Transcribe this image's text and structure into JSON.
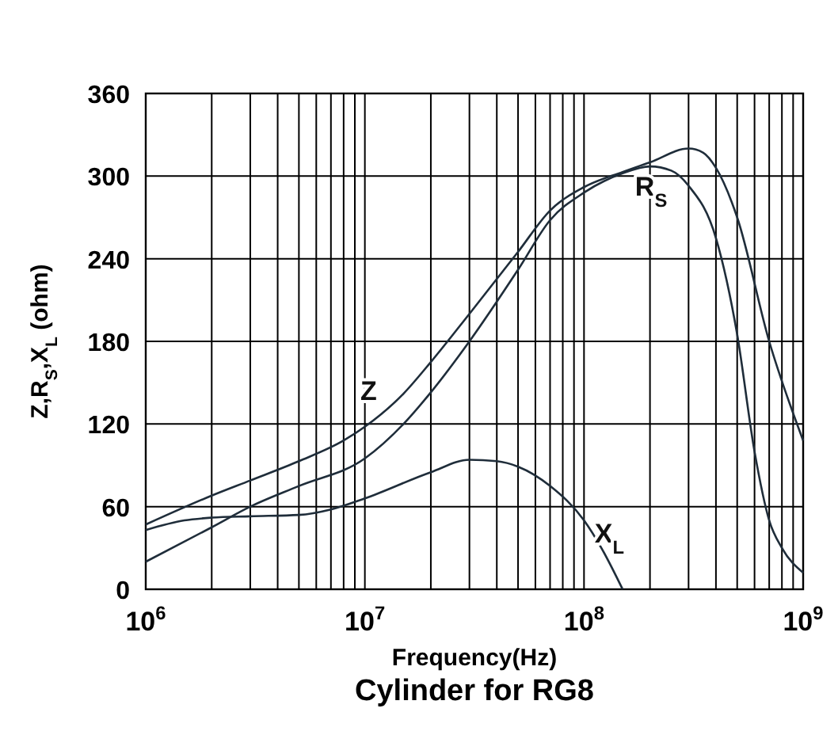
{
  "chart_data": {
    "type": "line",
    "title": "Cylinder for RG8",
    "xlabel": "Frequency(Hz)",
    "ylabel": "Z,R$_{S}$,X$_{L}$ (ohm)",
    "log": "x",
    "grid": true,
    "marker": "none",
    "line_style": "solid",
    "xlim": [
      1000000,
      1000000000
    ],
    "ylim": [
      0,
      360
    ],
    "yticks": [
      0,
      60,
      120,
      180,
      240,
      300,
      360
    ],
    "xticks": [
      {
        "value": 1000000,
        "label": "10$^{6}$"
      },
      {
        "value": 2000000,
        "label": null
      },
      {
        "value": 3000000,
        "label": null
      },
      {
        "value": 4000000,
        "label": null
      },
      {
        "value": 5000000,
        "label": null
      },
      {
        "value": 6000000,
        "label": null
      },
      {
        "value": 7000000,
        "label": null
      },
      {
        "value": 8000000,
        "label": null
      },
      {
        "value": 9000000,
        "label": null
      },
      {
        "value": 10000000,
        "label": "10$^{7}$"
      },
      {
        "value": 20000000,
        "label": null
      },
      {
        "value": 30000000,
        "label": null
      },
      {
        "value": 40000000,
        "label": null
      },
      {
        "value": 50000000,
        "label": null
      },
      {
        "value": 60000000,
        "label": null
      },
      {
        "value": 70000000,
        "label": null
      },
      {
        "value": 80000000,
        "label": null
      },
      {
        "value": 90000000,
        "label": null
      },
      {
        "value": 100000000,
        "label": "10$^{8}$"
      },
      {
        "value": 200000000,
        "label": null
      },
      {
        "value": 300000000,
        "label": null
      },
      {
        "value": 400000000,
        "label": null
      },
      {
        "value": 500000000,
        "label": null
      },
      {
        "value": 600000000,
        "label": null
      },
      {
        "value": 700000000,
        "label": null
      },
      {
        "value": 800000000,
        "label": null
      },
      {
        "value": 900000000,
        "label": null
      },
      {
        "value": 1000000000,
        "label": "10$^{9}$"
      }
    ],
    "series": [
      {
        "name": "Z",
        "color": "#1f2d3a",
        "x": [
          1000000,
          2000000,
          3000000,
          5000000,
          8000000,
          10000000,
          15000000,
          20000000,
          30000000,
          50000000,
          70000000,
          100000000,
          150000000,
          200000000,
          300000000,
          350000000,
          400000000,
          500000000,
          700000000,
          1000000000
        ],
        "values": [
          47,
          68,
          79,
          93,
          108,
          118,
          142,
          165,
          200,
          245,
          275,
          292,
          303,
          310,
          320,
          317,
          306,
          270,
          180,
          108
        ]
      },
      {
        "name": "R$_{S}$",
        "color": "#1f2d3a",
        "x": [
          1000000,
          2000000,
          3000000,
          5000000,
          10000000,
          15000000,
          20000000,
          30000000,
          50000000,
          70000000,
          100000000,
          150000000,
          200000000,
          250000000,
          300000000,
          400000000,
          500000000,
          600000000,
          700000000,
          800000000,
          1000000000
        ],
        "values": [
          20,
          45,
          60,
          75,
          95,
          120,
          143,
          180,
          232,
          268,
          288,
          302,
          307,
          304,
          293,
          255,
          185,
          100,
          50,
          30,
          12
        ]
      },
      {
        "name": "X$_{L}$",
        "color": "#1f2d3a",
        "x": [
          1000000,
          1500000,
          2000000,
          3000000,
          5000000,
          7000000,
          10000000,
          20000000,
          30000000,
          40000000,
          50000000,
          70000000,
          100000000,
          120000000,
          150000000
        ],
        "values": [
          43,
          50,
          52,
          53,
          54,
          58,
          66,
          85,
          94,
          93,
          89,
          75,
          50,
          30,
          0
        ]
      }
    ]
  }
}
